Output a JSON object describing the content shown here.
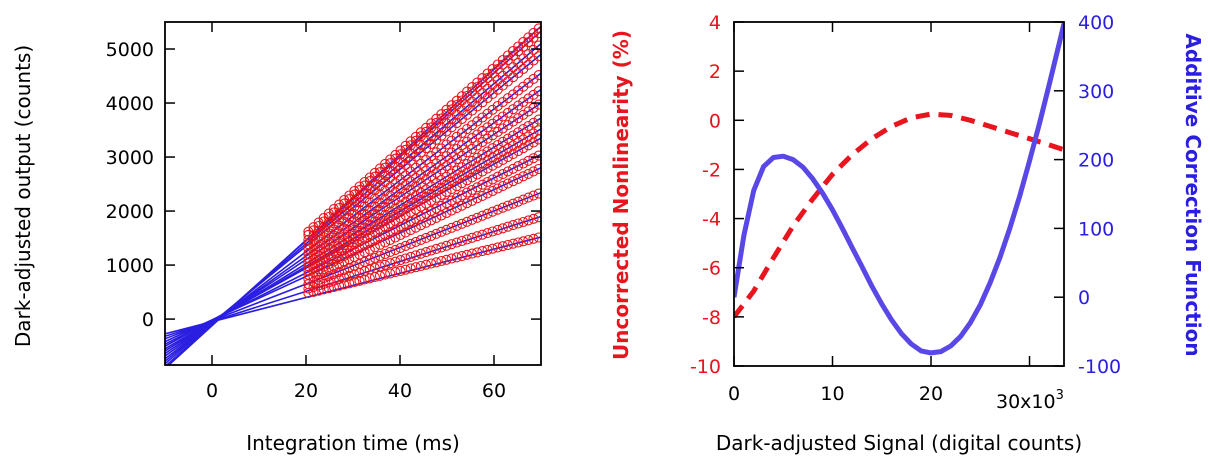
{
  "chart_data": [
    {
      "type": "scatter",
      "title": "",
      "xlabel": "Integration time (ms)",
      "ylabel": "Dark-adjusted output (counts)",
      "xlim": [
        -10,
        70
      ],
      "ylim": [
        -850,
        5500
      ],
      "xticks": [
        0,
        20,
        40,
        60
      ],
      "yticks": [
        0,
        1000,
        2000,
        3000,
        4000,
        5000
      ],
      "x_range_measured": [
        20.5,
        69.5
      ],
      "intercept_point": {
        "x": 1,
        "y": 0
      },
      "colors": {
        "points": "#e8141e",
        "fits": "#2a1ee0"
      },
      "legend": "none",
      "grid": false,
      "series": [
        {
          "y_at_x20": 470,
          "y_at_x70": 1520
        },
        {
          "y_at_x20": 550,
          "y_at_x70": 1900
        },
        {
          "y_at_x20": 630,
          "y_at_x70": 2340
        },
        {
          "y_at_x20": 720,
          "y_at_x70": 2800
        },
        {
          "y_at_x20": 800,
          "y_at_x70": 3050
        },
        {
          "y_at_x20": 870,
          "y_at_x70": 3350
        },
        {
          "y_at_x20": 950,
          "y_at_x70": 3520
        },
        {
          "y_at_x20": 1020,
          "y_at_x70": 3720
        },
        {
          "y_at_x20": 1100,
          "y_at_x70": 4000
        },
        {
          "y_at_x20": 1180,
          "y_at_x70": 4250
        },
        {
          "y_at_x20": 1270,
          "y_at_x70": 4550
        },
        {
          "y_at_x20": 1350,
          "y_at_x70": 4900
        },
        {
          "y_at_x20": 1430,
          "y_at_x70": 5100
        },
        {
          "y_at_x20": 1520,
          "y_at_x70": 5330
        },
        {
          "y_at_x20": 1580,
          "y_at_x70": 5420
        }
      ]
    },
    {
      "type": "line",
      "title": "",
      "xlabel": "Dark-adjusted Signal (digital counts)",
      "ylabel_left": "Uncorrected Nonlinearity (%)",
      "ylabel_right": "Additive Correction Function",
      "xlim": [
        0,
        33500
      ],
      "ylim_left": [
        -10,
        4
      ],
      "ylim_right": [
        -100,
        400
      ],
      "xticks": [
        0,
        10000,
        20000,
        30000
      ],
      "xtick_labels": [
        "0",
        "10",
        "20",
        ""
      ],
      "x_multiplier_label": "30x10",
      "x_multiplier_exponent": "3",
      "yticks_left": [
        -10,
        -8,
        -6,
        -4,
        -2,
        0,
        2,
        4
      ],
      "yticks_right": [
        -100,
        0,
        100,
        200,
        300,
        400
      ],
      "colors": {
        "left": "#e8141e",
        "right": "#5a48e6"
      },
      "legend": "none",
      "grid": false,
      "series": [
        {
          "name": "Uncorrected Nonlinearity (%)",
          "axis": "left",
          "style": "dashed",
          "x": [
            0,
            2000,
            4000,
            6000,
            8000,
            10000,
            12000,
            14000,
            16000,
            18000,
            20000,
            22000,
            24000,
            26000,
            28000,
            30000,
            32000,
            33500
          ],
          "y": [
            -8.0,
            -6.95,
            -5.6,
            -4.3,
            -3.2,
            -2.2,
            -1.4,
            -0.75,
            -0.25,
            0.1,
            0.25,
            0.2,
            0.0,
            -0.25,
            -0.5,
            -0.75,
            -1.0,
            -1.2
          ]
        },
        {
          "name": "Additive Correction Function",
          "axis": "right",
          "style": "solid",
          "x": [
            0,
            1000,
            2000,
            3000,
            4000,
            5000,
            6000,
            7000,
            8000,
            9000,
            10000,
            11000,
            12000,
            13000,
            14000,
            15000,
            16000,
            17000,
            18000,
            19000,
            20000,
            21000,
            22000,
            23000,
            24000,
            25000,
            26000,
            27000,
            28000,
            29000,
            30000,
            31000,
            32000,
            33000,
            33500
          ],
          "y": [
            0,
            90,
            155,
            190,
            203,
            205,
            200,
            189,
            172,
            151,
            127,
            100,
            72,
            44,
            16,
            -10,
            -33,
            -53,
            -68,
            -78,
            -81,
            -79,
            -71,
            -57,
            -37,
            -11,
            21,
            58,
            100,
            147,
            198,
            252,
            309,
            368,
            398
          ]
        }
      ]
    }
  ]
}
